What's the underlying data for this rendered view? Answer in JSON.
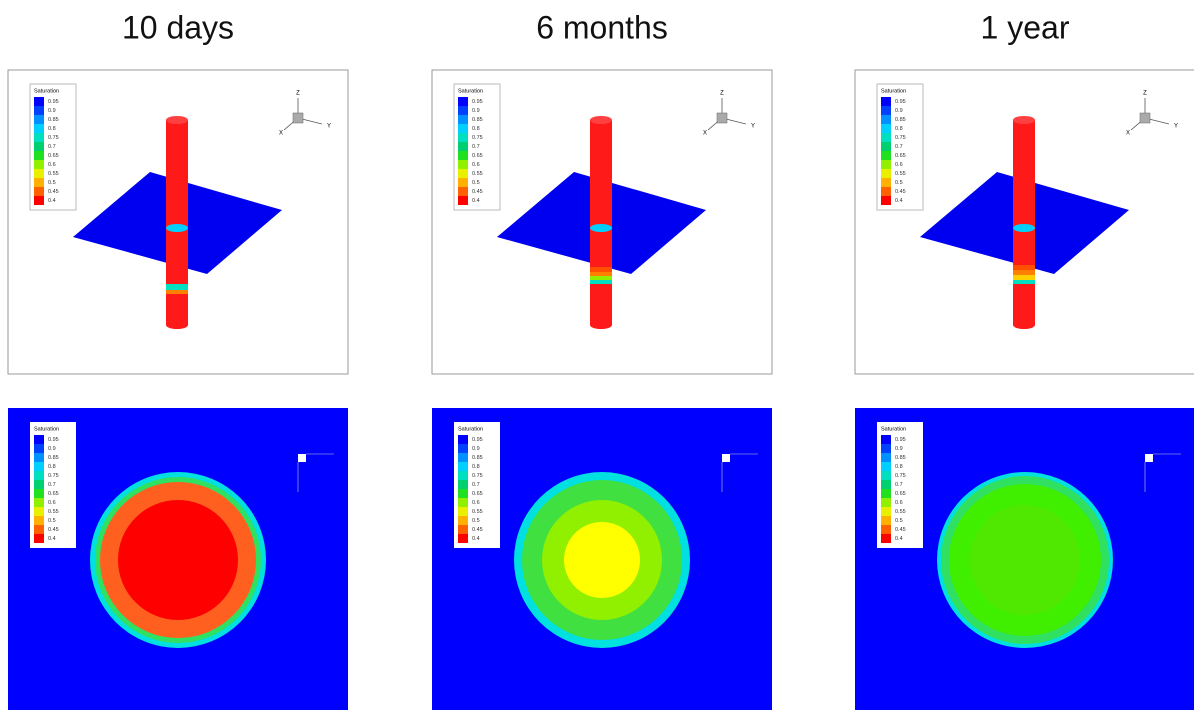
{
  "columns": [
    {
      "title": "10 days",
      "panels": [
        {
          "legend_title": "Saturation",
          "legend_labels": [
            "0.95",
            "0.9",
            "0.85",
            "0.8",
            "0.75",
            "0.7",
            "0.65",
            "0.6",
            "0.55",
            "0.5",
            "0.45",
            "0.4"
          ],
          "axes": [
            "Z",
            "Y",
            "X"
          ]
        },
        {
          "legend_title": "Saturation",
          "legend_labels": [
            "0.95",
            "0.9",
            "0.85",
            "0.8",
            "0.75",
            "0.7",
            "0.65",
            "0.6",
            "0.55",
            "0.5",
            "0.45",
            "0.4"
          ]
        }
      ]
    },
    {
      "title": "6 months",
      "panels": [
        {
          "legend_title": "Saturation",
          "legend_labels": [
            "0.95",
            "0.9",
            "0.85",
            "0.8",
            "0.75",
            "0.7",
            "0.65",
            "0.6",
            "0.55",
            "0.5",
            "0.45",
            "0.4"
          ],
          "axes": [
            "Z",
            "Y",
            "X"
          ]
        },
        {
          "legend_title": "Saturation",
          "legend_labels": [
            "0.95",
            "0.9",
            "0.85",
            "0.8",
            "0.75",
            "0.7",
            "0.65",
            "0.6",
            "0.55",
            "0.5",
            "0.45",
            "0.4"
          ]
        }
      ]
    },
    {
      "title": "1 year",
      "panels": [
        {
          "legend_title": "Saturation",
          "legend_labels": [
            "0.95",
            "0.9",
            "0.85",
            "0.8",
            "0.75",
            "0.7",
            "0.65",
            "0.6",
            "0.55",
            "0.5",
            "0.45",
            "0.4"
          ],
          "axes": [
            "Z",
            "Y",
            "X"
          ]
        },
        {
          "legend_title": "Saturation",
          "legend_labels": [
            "0.95",
            "0.9",
            "0.85",
            "0.8",
            "0.75",
            "0.7",
            "0.65",
            "0.6",
            "0.55",
            "0.5",
            "0.45",
            "0.4"
          ]
        }
      ]
    }
  ]
}
